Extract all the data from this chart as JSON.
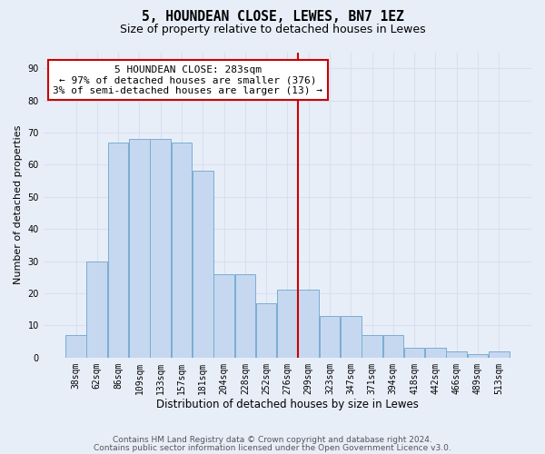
{
  "title": "5, HOUNDEAN CLOSE, LEWES, BN7 1EZ",
  "subtitle": "Size of property relative to detached houses in Lewes",
  "xlabel": "Distribution of detached houses by size in Lewes",
  "ylabel": "Number of detached properties",
  "tick_labels": [
    "38sqm",
    "62sqm",
    "86sqm",
    "109sqm",
    "133sqm",
    "157sqm",
    "181sqm",
    "204sqm",
    "228sqm",
    "252sqm",
    "276sqm",
    "299sqm",
    "323sqm",
    "347sqm",
    "371sqm",
    "394sqm",
    "418sqm",
    "442sqm",
    "466sqm",
    "489sqm",
    "513sqm"
  ],
  "bar_heights": [
    7,
    30,
    67,
    68,
    68,
    67,
    58,
    26,
    26,
    17,
    21,
    21,
    13,
    13,
    7,
    7,
    3,
    3,
    2,
    1,
    2
  ],
  "ylim": [
    0,
    95
  ],
  "yticks": [
    0,
    10,
    20,
    30,
    40,
    50,
    60,
    70,
    80,
    90
  ],
  "bar_color": "#c5d8f0",
  "bar_edge_color": "#7aadd4",
  "vline_pos": 10.48,
  "vline_color": "#cc0000",
  "annotation_text": "5 HOUNDEAN CLOSE: 283sqm\n← 97% of detached houses are smaller (376)\n3% of semi-detached houses are larger (13) →",
  "annotation_box_color": "white",
  "annotation_box_edge_color": "#cc0000",
  "footer_line1": "Contains HM Land Registry data © Crown copyright and database right 2024.",
  "footer_line2": "Contains public sector information licensed under the Open Government Licence v3.0.",
  "background_color": "#e8eef8",
  "grid_color": "#d8dff0",
  "title_fontsize": 10.5,
  "subtitle_fontsize": 9,
  "xlabel_fontsize": 8.5,
  "ylabel_fontsize": 8,
  "tick_fontsize": 7,
  "annotation_fontsize": 8,
  "footer_fontsize": 6.5
}
